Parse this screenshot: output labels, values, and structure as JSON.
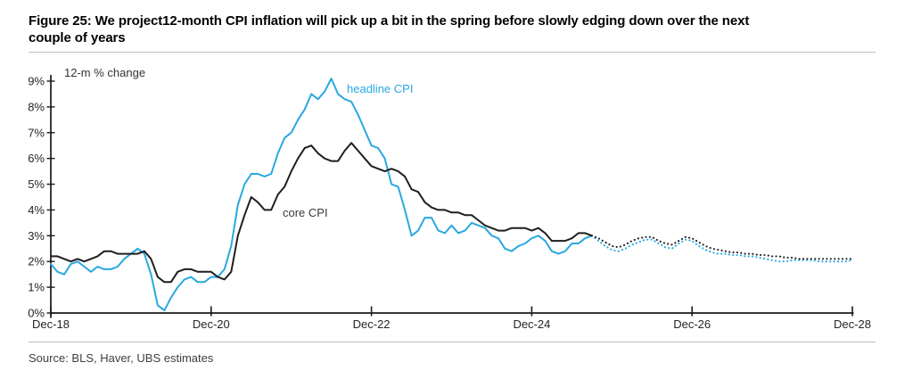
{
  "figure": {
    "title_line1": "Figure 25: We project12-month CPI inflation will pick up a bit in the spring before slowly edging down over the next",
    "title_line2": "couple of years",
    "source": "Source: BLS, Haver, UBS estimates"
  },
  "chart_data": {
    "type": "line",
    "axis_label": "12-m % change",
    "x_tick_labels": [
      "Dec-18",
      "Dec-20",
      "Dec-22",
      "Dec-24",
      "Dec-26",
      "Dec-28"
    ],
    "y_tick_labels": [
      "0%",
      "1%",
      "2%",
      "3%",
      "4%",
      "5%",
      "6%",
      "7%",
      "8%",
      "9%"
    ],
    "ylim": [
      0,
      9
    ],
    "frequency": "monthly",
    "x_range": [
      "Dec-18",
      "Dec-28"
    ],
    "forecast_style": "dotted",
    "grid": "off",
    "legend_position": "inline-labels",
    "series": [
      {
        "name": "headline CPI",
        "color": "#29a8e0",
        "actual": [
          1.9,
          1.6,
          1.5,
          1.9,
          2.0,
          1.8,
          1.6,
          1.8,
          1.7,
          1.7,
          1.8,
          2.1,
          2.3,
          2.5,
          2.3,
          1.5,
          0.3,
          0.1,
          0.6,
          1.0,
          1.3,
          1.4,
          1.2,
          1.2,
          1.4,
          1.4,
          1.7,
          2.6,
          4.2,
          5.0,
          5.4,
          5.4,
          5.3,
          5.4,
          6.2,
          6.8,
          7.0,
          7.5,
          7.9,
          8.5,
          8.3,
          8.6,
          9.1,
          8.5,
          8.3,
          8.2,
          7.7,
          7.1,
          6.5,
          6.4,
          6.0,
          5.0,
          4.9,
          4.0,
          3.0,
          3.2,
          3.7,
          3.7,
          3.2,
          3.1,
          3.4,
          3.1,
          3.2,
          3.5,
          3.4,
          3.3,
          3.0,
          2.9,
          2.5,
          2.4,
          2.6,
          2.7,
          2.9,
          3.0,
          2.8,
          2.4,
          2.3,
          2.4,
          2.7,
          2.7,
          2.9,
          3.0
        ],
        "forecast": [
          2.8,
          2.6,
          2.45,
          2.4,
          2.5,
          2.65,
          2.75,
          2.85,
          2.85,
          2.7,
          2.55,
          2.5,
          2.7,
          2.85,
          2.8,
          2.6,
          2.45,
          2.35,
          2.3,
          2.3,
          2.25,
          2.25,
          2.2,
          2.2,
          2.15,
          2.1,
          2.05,
          2.0,
          2.0,
          2.05,
          2.05,
          2.05,
          2.05,
          2.0,
          2.0,
          2.0,
          2.0,
          2.0,
          2.05
        ]
      },
      {
        "name": "core CPI",
        "color": "#1f1f1f",
        "actual": [
          2.2,
          2.2,
          2.1,
          2.0,
          2.1,
          2.0,
          2.1,
          2.2,
          2.4,
          2.4,
          2.3,
          2.3,
          2.3,
          2.3,
          2.4,
          2.1,
          1.4,
          1.2,
          1.2,
          1.6,
          1.7,
          1.7,
          1.6,
          1.6,
          1.6,
          1.4,
          1.3,
          1.6,
          3.0,
          3.8,
          4.5,
          4.3,
          4.0,
          4.0,
          4.6,
          4.9,
          5.5,
          6.0,
          6.4,
          6.5,
          6.2,
          6.0,
          5.9,
          5.9,
          6.3,
          6.6,
          6.3,
          6.0,
          5.7,
          5.6,
          5.5,
          5.6,
          5.5,
          5.3,
          4.8,
          4.7,
          4.3,
          4.1,
          4.0,
          4.0,
          3.9,
          3.9,
          3.8,
          3.8,
          3.6,
          3.4,
          3.3,
          3.2,
          3.2,
          3.3,
          3.3,
          3.3,
          3.2,
          3.3,
          3.1,
          2.8,
          2.8,
          2.8,
          2.9,
          3.1,
          3.1,
          3.0
        ],
        "forecast": [
          2.9,
          2.75,
          2.6,
          2.55,
          2.65,
          2.8,
          2.9,
          2.95,
          2.95,
          2.8,
          2.7,
          2.65,
          2.8,
          2.95,
          2.9,
          2.75,
          2.6,
          2.5,
          2.45,
          2.4,
          2.35,
          2.35,
          2.3,
          2.3,
          2.25,
          2.25,
          2.2,
          2.2,
          2.15,
          2.15,
          2.1,
          2.1,
          2.1,
          2.1,
          2.1,
          2.1,
          2.1,
          2.1,
          2.1
        ]
      }
    ]
  }
}
